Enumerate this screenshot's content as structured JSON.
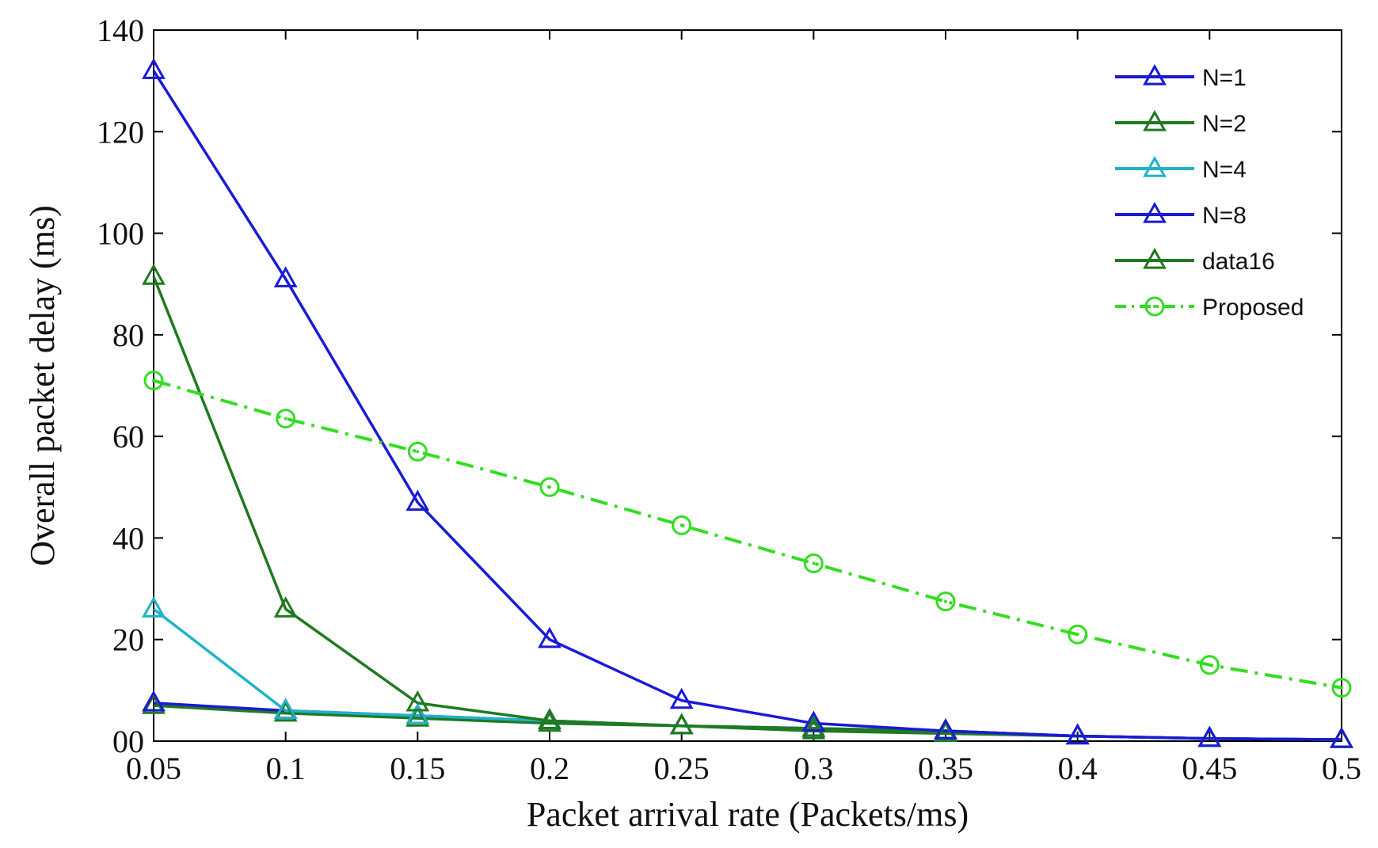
{
  "chart_data": {
    "type": "line",
    "title": "",
    "xlabel": "Packet arrival rate (Packets/ms)",
    "ylabel": "Overall packet delay (ms)",
    "xlim": [
      0.05,
      0.5
    ],
    "ylim": [
      0,
      140
    ],
    "x_ticks": [
      0.05,
      0.1,
      0.15,
      0.2,
      0.25,
      0.3,
      0.35,
      0.4,
      0.45,
      0.5
    ],
    "x_tick_labels": [
      "0.05",
      "0.1",
      "0.15",
      "0.2",
      "0.25",
      "0.3",
      "0.35",
      "0.4",
      "0.45",
      "0.5"
    ],
    "y_ticks": [
      0,
      20,
      40,
      60,
      80,
      100,
      120,
      140
    ],
    "y_tick_labels": [
      "00",
      "20",
      "40",
      "60",
      "80",
      "100",
      "120",
      "140"
    ],
    "grid": false,
    "legend_position": "top-right",
    "x": [
      0.05,
      0.1,
      0.15,
      0.2,
      0.25,
      0.3,
      0.35,
      0.4,
      0.45,
      0.5
    ],
    "series": [
      {
        "name": "N=1",
        "color": "#1a1ad6",
        "marker": "triangle",
        "style": "solid",
        "values": [
          132,
          91,
          47,
          20,
          8,
          3.5,
          2,
          1,
          0.5,
          0.3
        ]
      },
      {
        "name": "N=2",
        "color": "#1f7a1f",
        "marker": "triangle",
        "style": "solid",
        "values": [
          91.5,
          26,
          7.5,
          4,
          3,
          2.5,
          2,
          1,
          0.5,
          0.3
        ]
      },
      {
        "name": "N=4",
        "color": "#20b2c8",
        "marker": "triangle",
        "style": "solid",
        "values": [
          26,
          6,
          5,
          4,
          3,
          2.5,
          2,
          1,
          0.5,
          0.3
        ]
      },
      {
        "name": "N=8",
        "color": "#1a1ad6",
        "marker": "triangle",
        "style": "solid",
        "values": [
          7.5,
          6,
          5,
          4,
          3,
          2.5,
          2,
          1,
          0.5,
          0.3
        ]
      },
      {
        "name": "data16",
        "color": "#1f7a1f",
        "marker": "triangle",
        "style": "solid",
        "values": [
          7,
          5.5,
          4.5,
          3.5,
          3,
          2,
          1.5,
          1,
          0.5,
          0.3
        ]
      },
      {
        "name": "Proposed",
        "color": "#33dd22",
        "marker": "circle",
        "style": "dashdot",
        "values": [
          71,
          63.5,
          57,
          50,
          42.5,
          35,
          27.5,
          21,
          15,
          10.5
        ]
      }
    ]
  }
}
